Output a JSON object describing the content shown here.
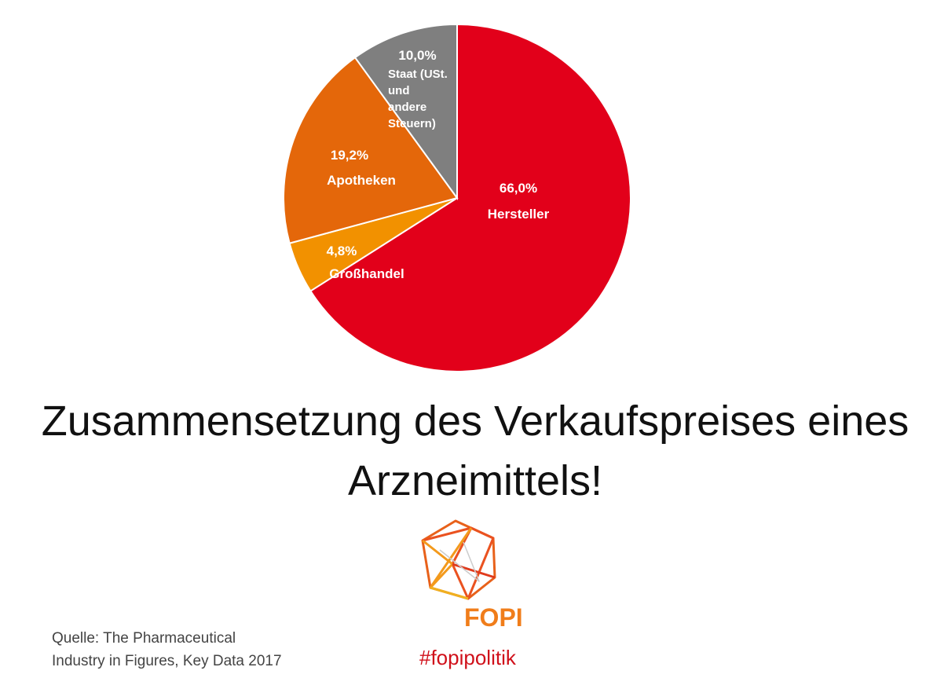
{
  "chart_data": {
    "type": "pie",
    "title": "Zusammensetzung des Verkaufspreises eines Arzneimittels!",
    "categories": [
      "Hersteller",
      "Großhandel",
      "Apotheken",
      "Staat (USt. und andere Steuern)"
    ],
    "values": [
      66.0,
      4.8,
      19.2,
      10.0
    ],
    "value_labels": [
      "66,0%",
      "4,8%",
      "19,2%",
      "10,0%"
    ],
    "colors": [
      "#e2001a",
      "#f29100",
      "#e4670a",
      "#7f7f7f"
    ],
    "source": "Quelle: The Pharmaceutical Industry in Figures, Key Data 2017",
    "logo_text": "FOPI",
    "hashtag": "#fopipolitik"
  }
}
